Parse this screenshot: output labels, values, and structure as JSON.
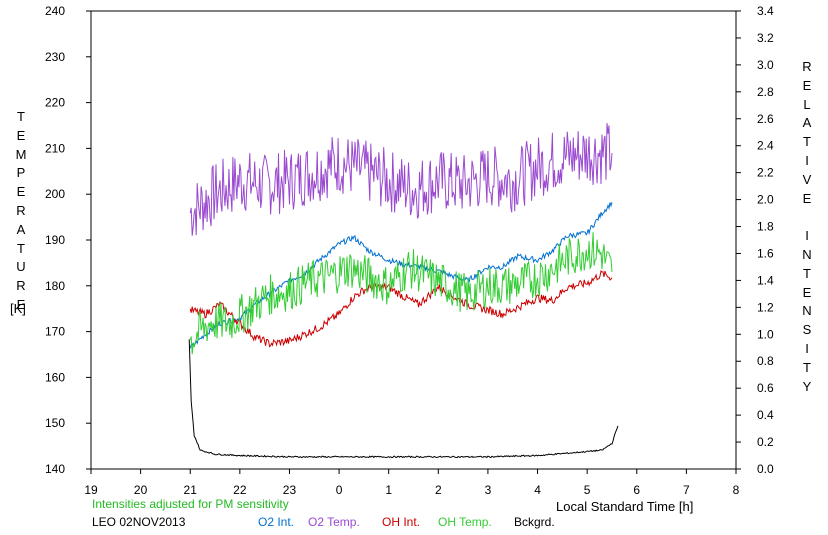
{
  "chart_data": {
    "type": "line",
    "left_axis_label": "TEMPERATURE",
    "left_axis_unit": "[K]",
    "right_axis_label": "RELATIVE INTENSITY",
    "xlabel": "Local Standard Time [h]",
    "x_ticks": [
      "19",
      "20",
      "21",
      "22",
      "23",
      "0",
      "1",
      "2",
      "3",
      "4",
      "5",
      "6",
      "7",
      "8"
    ],
    "left_ylim": [
      140,
      240
    ],
    "left_ticks": [
      "140",
      "150",
      "160",
      "170",
      "180",
      "190",
      "200",
      "210",
      "220",
      "230",
      "240"
    ],
    "right_ylim": [
      0.0,
      3.4
    ],
    "right_ticks": [
      "0.0",
      "0.2",
      "0.4",
      "0.6",
      "0.8",
      "1.0",
      "1.2",
      "1.4",
      "1.6",
      "1.8",
      "2.0",
      "2.2",
      "2.4",
      "2.6",
      "2.8",
      "3.0",
      "3.2",
      "3.4"
    ],
    "note": "Intensities adjusted for PM sensitivity",
    "station": "LEO 02NOV2013",
    "colors": {
      "o2_int": "#0070d0",
      "o2_temp": "#9a4ad0",
      "oh_int": "#cc0000",
      "oh_temp": "#33cc33",
      "bckgrd": "#000000",
      "note": "#22bb22"
    },
    "legend": [
      {
        "key": "o2_int",
        "label": "O2 Int."
      },
      {
        "key": "o2_temp",
        "label": "O2 Temp."
      },
      {
        "key": "oh_int",
        "label": "OH Int."
      },
      {
        "key": "oh_temp",
        "label": "OH Temp."
      },
      {
        "key": "bckgrd",
        "label": "Bckgrd."
      }
    ],
    "series": [
      {
        "key": "o2_temp",
        "axis": "left",
        "noise": 7,
        "points": [
          [
            21.0,
            196
          ],
          [
            21.5,
            200
          ],
          [
            22.0,
            203
          ],
          [
            22.5,
            202
          ],
          [
            23.0,
            203
          ],
          [
            23.5,
            205
          ],
          [
            24.0,
            207
          ],
          [
            24.5,
            205
          ],
          [
            25.0,
            203
          ],
          [
            25.5,
            201
          ],
          [
            26.0,
            203
          ],
          [
            26.5,
            202
          ],
          [
            27.0,
            204
          ],
          [
            27.5,
            203
          ],
          [
            28.0,
            206
          ],
          [
            28.5,
            208
          ],
          [
            29.0,
            209
          ],
          [
            29.5,
            209
          ]
        ]
      },
      {
        "key": "o2_int",
        "axis": "right",
        "noise": 0.02,
        "points": [
          [
            21.0,
            0.9
          ],
          [
            21.3,
            1.0
          ],
          [
            21.6,
            1.08
          ],
          [
            22.0,
            1.12
          ],
          [
            22.3,
            1.22
          ],
          [
            22.6,
            1.3
          ],
          [
            23.0,
            1.4
          ],
          [
            23.3,
            1.45
          ],
          [
            23.6,
            1.55
          ],
          [
            24.0,
            1.67
          ],
          [
            24.3,
            1.72
          ],
          [
            24.6,
            1.62
          ],
          [
            25.0,
            1.55
          ],
          [
            25.3,
            1.52
          ],
          [
            25.6,
            1.5
          ],
          [
            26.0,
            1.47
          ],
          [
            26.3,
            1.43
          ],
          [
            26.6,
            1.4
          ],
          [
            27.0,
            1.5
          ],
          [
            27.3,
            1.5
          ],
          [
            27.6,
            1.58
          ],
          [
            28.0,
            1.55
          ],
          [
            28.3,
            1.62
          ],
          [
            28.6,
            1.73
          ],
          [
            29.0,
            1.75
          ],
          [
            29.3,
            1.9
          ],
          [
            29.5,
            1.98
          ]
        ]
      },
      {
        "key": "oh_int",
        "axis": "right",
        "noise": 0.03,
        "points": [
          [
            21.0,
            1.18
          ],
          [
            21.3,
            1.15
          ],
          [
            21.6,
            1.22
          ],
          [
            22.0,
            1.08
          ],
          [
            22.3,
            0.98
          ],
          [
            22.6,
            0.93
          ],
          [
            23.0,
            0.95
          ],
          [
            23.3,
            1.0
          ],
          [
            23.6,
            1.05
          ],
          [
            24.0,
            1.15
          ],
          [
            24.3,
            1.28
          ],
          [
            24.6,
            1.35
          ],
          [
            25.0,
            1.35
          ],
          [
            25.3,
            1.28
          ],
          [
            25.6,
            1.22
          ],
          [
            26.0,
            1.35
          ],
          [
            26.3,
            1.28
          ],
          [
            26.6,
            1.22
          ],
          [
            27.0,
            1.18
          ],
          [
            27.3,
            1.15
          ],
          [
            27.6,
            1.2
          ],
          [
            28.0,
            1.27
          ],
          [
            28.3,
            1.25
          ],
          [
            28.6,
            1.35
          ],
          [
            29.0,
            1.38
          ],
          [
            29.3,
            1.45
          ],
          [
            29.5,
            1.42
          ]
        ]
      },
      {
        "key": "oh_temp",
        "axis": "left",
        "noise": 4.5,
        "points": [
          [
            21.0,
            168
          ],
          [
            21.4,
            172
          ],
          [
            21.8,
            172
          ],
          [
            22.2,
            175
          ],
          [
            22.6,
            178
          ],
          [
            23.0,
            179
          ],
          [
            23.4,
            181
          ],
          [
            23.8,
            182
          ],
          [
            24.2,
            184
          ],
          [
            24.6,
            182
          ],
          [
            25.0,
            180
          ],
          [
            25.4,
            184
          ],
          [
            25.8,
            182
          ],
          [
            26.2,
            180
          ],
          [
            26.6,
            178
          ],
          [
            27.0,
            180
          ],
          [
            27.4,
            180
          ],
          [
            27.8,
            181
          ],
          [
            28.2,
            183
          ],
          [
            28.6,
            186
          ],
          [
            29.0,
            188
          ],
          [
            29.3,
            187
          ],
          [
            29.5,
            183
          ]
        ]
      },
      {
        "key": "bckgrd",
        "axis": "right",
        "noise": 0.005,
        "points": [
          [
            20.98,
            0.96
          ],
          [
            21.02,
            0.5
          ],
          [
            21.08,
            0.25
          ],
          [
            21.2,
            0.14
          ],
          [
            21.5,
            0.11
          ],
          [
            22.0,
            0.1
          ],
          [
            23.0,
            0.09
          ],
          [
            24.0,
            0.09
          ],
          [
            25.0,
            0.09
          ],
          [
            26.0,
            0.09
          ],
          [
            27.0,
            0.09
          ],
          [
            28.0,
            0.1
          ],
          [
            28.7,
            0.12
          ],
          [
            29.3,
            0.14
          ],
          [
            29.5,
            0.19
          ],
          [
            29.62,
            0.32
          ]
        ]
      }
    ]
  }
}
